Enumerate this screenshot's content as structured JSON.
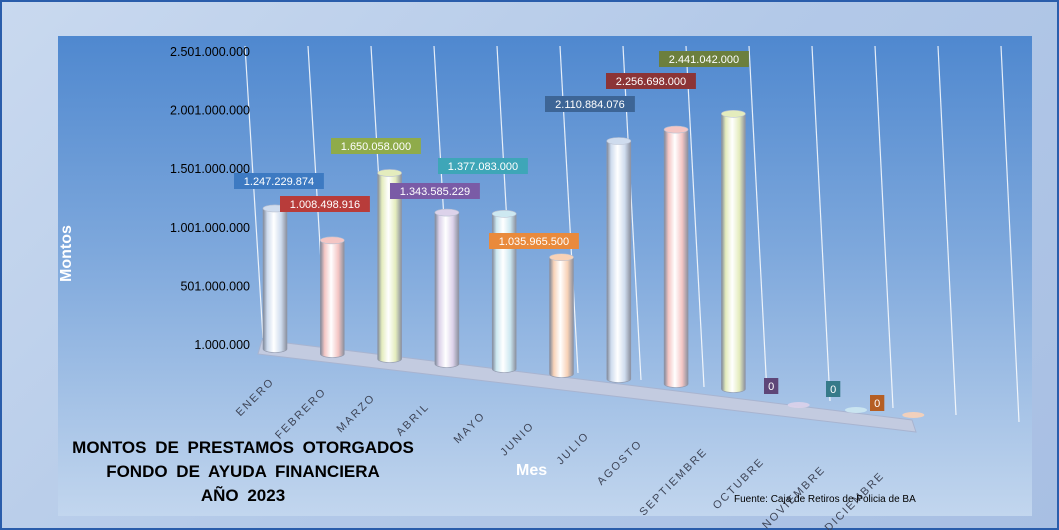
{
  "chart_data": {
    "type": "bar",
    "title": [
      "MONTOS  DE PRESTAMOS  OTORGADOS",
      "FONDO DE AYUDA  FINANCIERA",
      "AÑO  2023"
    ],
    "xlabel": "Mes",
    "ylabel": "Montos",
    "source": "Fuente: Caja de Retiros de Policia de BA",
    "yticks": [
      "1.000.000",
      "501.000.000",
      "1.001.000.000",
      "1.501.000.000",
      "2.001.000.000",
      "2.501.000.000"
    ],
    "ylim": [
      1000000,
      2501000000
    ],
    "categories": [
      "ENERO",
      "FEBRERO",
      "MARZO",
      "ABRIL",
      "MAYO",
      "JUNIO",
      "JULIO",
      "AGOSTO",
      "SEPTIEMBRE",
      "OCTUBRE",
      "NOVIEMBRE",
      "DICIEMBRE"
    ],
    "values": [
      1247229874,
      1008498916,
      1650058000,
      1343585229,
      1377083000,
      1035965500,
      2110884076,
      2256698000,
      2441042000,
      0,
      0,
      0
    ],
    "value_labels": [
      "1.247.229.874",
      "1.008.498.916",
      "1.650.058.000",
      "1.343.585.229",
      "1.377.083.000",
      "1.035.965.500",
      "2.110.884.076",
      "2.256.698.000",
      "2.441.042.000",
      "0",
      "0",
      "0"
    ],
    "bar_colors": [
      "#cfdcee",
      "#f4c6c4",
      "#e4ecbd",
      "#dcd2ea",
      "#cde8f1",
      "#f8d2b7",
      "#cfdcee",
      "#f4c6c4",
      "#e4ecbd",
      "#dcd2ea",
      "#cde8f1",
      "#f8d2b7"
    ],
    "label_colors": [
      "#3d7ac2",
      "#b83c3a",
      "#8fab4a",
      "#7a5ba6",
      "#3ea6b8",
      "#e98a3c",
      "#3d6596",
      "#8c3436",
      "#6c7f3d",
      "#5e4678",
      "#367a89",
      "#b55e23"
    ],
    "grid": true
  }
}
